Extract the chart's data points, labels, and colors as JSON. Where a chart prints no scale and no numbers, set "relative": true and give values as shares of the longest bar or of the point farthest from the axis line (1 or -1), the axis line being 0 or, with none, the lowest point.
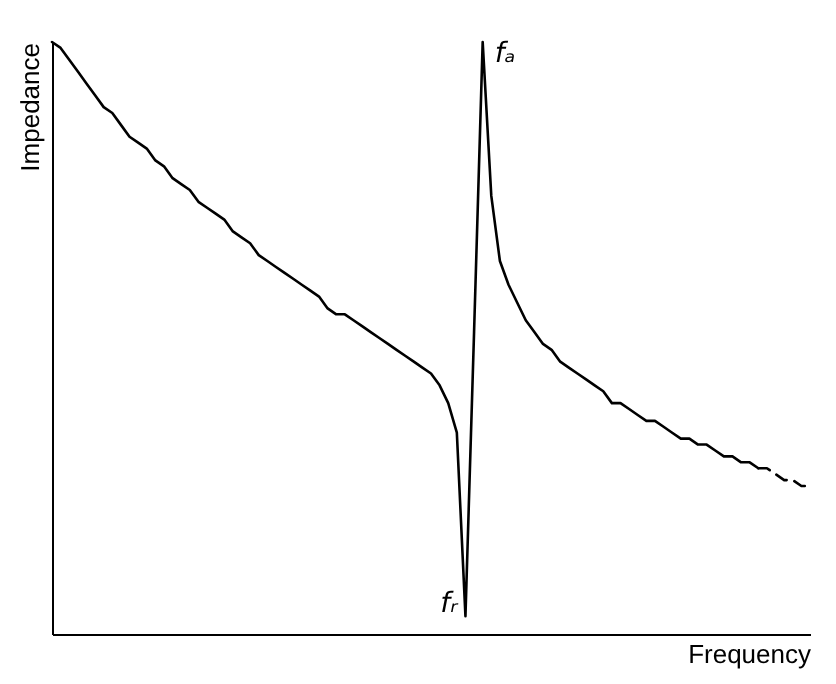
{
  "chart_data": {
    "type": "line",
    "relative": true,
    "xlabel": "Frequency",
    "ylabel": "Impedance",
    "categories": [
      null,
      null,
      null,
      null,
      null,
      null,
      null,
      null,
      null,
      null,
      null,
      null,
      null,
      null,
      null,
      null,
      null,
      null,
      null,
      null,
      null,
      null,
      null,
      null,
      null,
      null,
      null,
      null,
      null,
      null,
      null,
      null,
      null,
      null,
      null,
      null,
      null,
      null,
      null,
      null,
      null,
      null,
      null,
      null,
      null,
      null,
      null,
      null,
      null,
      null,
      null,
      null,
      null,
      null,
      null,
      null,
      null,
      null,
      null,
      null,
      null,
      null,
      null,
      null,
      null,
      null,
      null,
      null,
      null,
      null,
      null,
      null,
      null,
      null,
      null,
      null,
      null,
      null,
      null,
      null,
      null,
      null,
      null,
      null,
      null,
      null,
      null,
      null,
      null
    ],
    "series": [
      {
        "color": "#000000",
        "line_style": "solid",
        "values": [
          1.0,
          0.99,
          0.97,
          0.95,
          0.93,
          0.91,
          0.89,
          0.88,
          0.86,
          0.84,
          0.83,
          0.82,
          0.8,
          0.79,
          0.77,
          0.76,
          0.75,
          0.73,
          0.72,
          0.71,
          0.7,
          0.68,
          0.67,
          0.66,
          0.64,
          0.63,
          0.62,
          0.61,
          0.6,
          0.59,
          0.58,
          0.57,
          0.55,
          0.54,
          0.54,
          0.53,
          0.52,
          0.51,
          0.5,
          0.49,
          0.48,
          0.47,
          0.46,
          0.45,
          0.44,
          0.42,
          0.39,
          0.34,
          0.03,
          0.51,
          1.0,
          0.74,
          0.63,
          0.59,
          0.56,
          0.53,
          0.51,
          0.49,
          0.48,
          0.46,
          0.45,
          0.44,
          0.43,
          0.42,
          0.41,
          0.39,
          0.39,
          0.38,
          0.37,
          0.36,
          0.36,
          0.35,
          0.34,
          0.33,
          0.33,
          0.32,
          0.32,
          0.31,
          0.3,
          0.3,
          0.29,
          0.29,
          0.28,
          null,
          null,
          null,
          null,
          null,
          null
        ]
      },
      {
        "color": "#000000",
        "line_style": "dashed",
        "values": [
          null,
          null,
          null,
          null,
          null,
          null,
          null,
          null,
          null,
          null,
          null,
          null,
          null,
          null,
          null,
          null,
          null,
          null,
          null,
          null,
          null,
          null,
          null,
          null,
          null,
          null,
          null,
          null,
          null,
          null,
          null,
          null,
          null,
          null,
          null,
          null,
          null,
          null,
          null,
          null,
          null,
          null,
          null,
          null,
          null,
          null,
          null,
          null,
          null,
          null,
          null,
          null,
          null,
          null,
          null,
          null,
          null,
          null,
          null,
          null,
          null,
          null,
          null,
          null,
          null,
          null,
          null,
          null,
          null,
          null,
          null,
          null,
          null,
          null,
          null,
          null,
          null,
          null,
          null,
          null,
          null,
          null,
          0.28,
          0.28,
          0.27,
          0.26,
          0.26,
          0.25,
          0.25
        ]
      }
    ],
    "annotations": [
      "fᵣ",
      "fₐ"
    ]
  }
}
